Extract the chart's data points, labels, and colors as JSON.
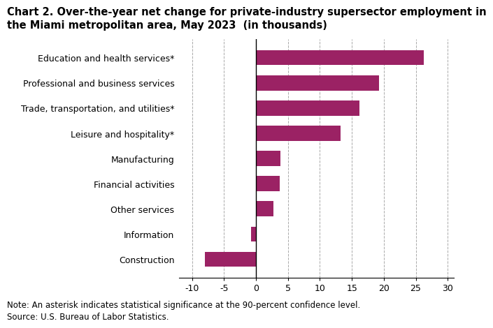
{
  "title_line1": "Chart 2. Over-the-year net change for private-industry supersector employment in",
  "title_line2": "the Miami metropolitan area, May 2023  (in thousands)",
  "categories": [
    "Construction",
    "Information",
    "Other services",
    "Financial activities",
    "Manufacturing",
    "Leisure and hospitality*",
    "Trade, transportation, and utilities*",
    "Professional and business services",
    "Education and health services*"
  ],
  "values": [
    -8.0,
    -0.8,
    2.7,
    3.7,
    3.8,
    13.2,
    16.2,
    19.2,
    26.3
  ],
  "bar_color": "#9b2264",
  "xlim": [
    -12,
    31
  ],
  "xticks": [
    -10,
    -5,
    0,
    5,
    10,
    15,
    20,
    25,
    30
  ],
  "note_line1": "Note: An asterisk indicates statistical significance at the 90-percent confidence level.",
  "note_line2": "Source: U.S. Bureau of Labor Statistics.",
  "title_fontsize": 10.5,
  "tick_fontsize": 9,
  "note_fontsize": 8.5,
  "background_color": "#ffffff"
}
